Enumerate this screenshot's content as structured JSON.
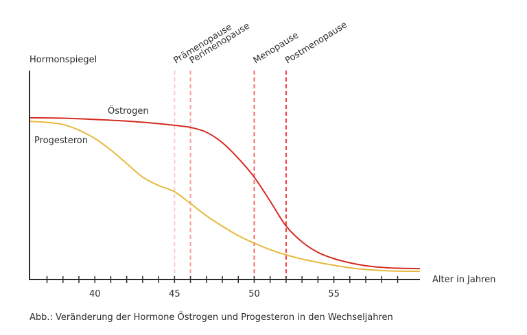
{
  "chart_data": {
    "type": "line",
    "ylabel": "Hormonspiegel",
    "xlabel": "Alter in Jahren",
    "caption": "Abb.: Veränderung der Hormone Östrogen und Progesteron in den Wechseljahren",
    "xlim": [
      35.9,
      60.4
    ],
    "ylim": [
      0,
      100
    ],
    "x_ticks_minor": [
      37,
      38,
      39,
      40,
      41,
      42,
      43,
      44,
      45,
      46,
      47,
      48,
      49,
      50,
      51,
      52,
      53,
      54,
      55,
      56,
      57,
      58,
      59
    ],
    "x_tick_labels": [
      {
        "value": 40,
        "label": "40"
      },
      {
        "value": 45,
        "label": "45"
      },
      {
        "value": 50,
        "label": "50"
      },
      {
        "value": 55,
        "label": "55"
      }
    ],
    "phases": [
      {
        "name": "Prämenopause",
        "x": 45,
        "color": "#f9c9c9"
      },
      {
        "name": "Perimenopause",
        "x": 46,
        "color": "#f59b9b"
      },
      {
        "name": "Menopause",
        "x": 50,
        "color": "#f06a6a"
      },
      {
        "name": "Postmenopause",
        "x": 52,
        "color": "#ec3b3b"
      }
    ],
    "series": [
      {
        "name": "Östrogen",
        "color": "#d42a20",
        "x": [
          35.9,
          38,
          40,
          42,
          44,
          45,
          46,
          47,
          48,
          49,
          50,
          51,
          52,
          53,
          54,
          55,
          56,
          57,
          58,
          59,
          60.4
        ],
        "y": [
          77.4,
          77.2,
          76.6,
          75.8,
          74.6,
          73.8,
          72.8,
          70.5,
          65.5,
          58.0,
          49.0,
          37.5,
          25.6,
          18.0,
          13.0,
          10.0,
          8.0,
          6.6,
          5.8,
          5.4,
          5.2
        ]
      },
      {
        "name": "Progesteron",
        "color": "#e6b93c",
        "x": [
          35.9,
          37,
          38,
          39,
          40,
          41,
          42,
          43,
          44,
          45,
          46,
          47,
          48,
          49,
          50,
          51,
          52,
          53,
          54,
          55,
          56,
          57,
          58,
          59,
          60.4
        ],
        "y": [
          75.7,
          75.2,
          74.2,
          71.5,
          67.5,
          62.0,
          55.5,
          49.0,
          45.0,
          42.0,
          36.4,
          30.5,
          25.5,
          21.0,
          17.4,
          14.3,
          11.8,
          9.8,
          8.2,
          6.8,
          5.6,
          4.8,
          4.3,
          4.0,
          3.9
        ]
      }
    ]
  }
}
